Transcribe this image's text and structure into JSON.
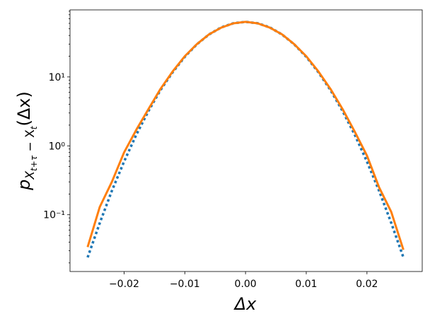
{
  "chart_data": {
    "type": "line",
    "xlabel": "Δx",
    "ylabel_parts": [
      "p",
      "X",
      "t+τ",
      " − X",
      "t",
      "(Δx)"
    ],
    "x": [
      -0.026,
      -0.024,
      -0.022,
      -0.02,
      -0.018,
      -0.016,
      -0.014,
      -0.012,
      -0.01,
      -0.008,
      -0.006,
      -0.004,
      -0.002,
      0,
      0.002,
      0.004,
      0.006,
      0.008,
      0.01,
      0.012,
      0.014,
      0.016,
      0.018,
      0.02,
      0.022,
      0.024,
      0.026
    ],
    "series": [
      {
        "color": "#1f77b4",
        "style": "dotted",
        "values": [
          0.024,
          0.076,
          0.223,
          0.59,
          1.44,
          3.19,
          6.44,
          11.7,
          19.6,
          29.9,
          41.4,
          52.3,
          60.1,
          63,
          60.1,
          52.3,
          41.4,
          29.9,
          19.6,
          11.7,
          6.44,
          3.19,
          1.44,
          0.59,
          0.223,
          0.076,
          0.024
        ]
      },
      {
        "color": "#ff7f0e",
        "style": "solid",
        "values": [
          0.034,
          0.13,
          0.3,
          0.8,
          1.7,
          3.4,
          6.7,
          12,
          20,
          30,
          41.5,
          52,
          60,
          63,
          60,
          52,
          41.5,
          30,
          20,
          12,
          6.7,
          3.4,
          1.6,
          0.72,
          0.25,
          0.11,
          0.031
        ]
      }
    ],
    "xlim": [
      -0.0289,
      0.0291
    ],
    "xticks": [
      {
        "value": -0.02,
        "label": "−0.02"
      },
      {
        "value": -0.01,
        "label": "−0.01"
      },
      {
        "value": 0,
        "label": "0.00"
      },
      0.01,
      0.02
    ],
    "ylim": [
      0.015,
      94
    ],
    "yscale": "log",
    "yticks": [
      {
        "value": 0.1,
        "label": "10⁻¹"
      },
      {
        "value": 1,
        "label": "10⁰"
      },
      {
        "value": 10,
        "label": "10¹"
      }
    ],
    "yminorticks": [
      0.02,
      0.03,
      0.04,
      0.05,
      0.06,
      0.07,
      0.08,
      0.09,
      0.2,
      0.3,
      0.4,
      0.5,
      0.6,
      0.7,
      0.8,
      0.9,
      2,
      3,
      4,
      5,
      6,
      7,
      8,
      9,
      20,
      30,
      40,
      50,
      60,
      70,
      80,
      90
    ],
    "grid": false
  }
}
